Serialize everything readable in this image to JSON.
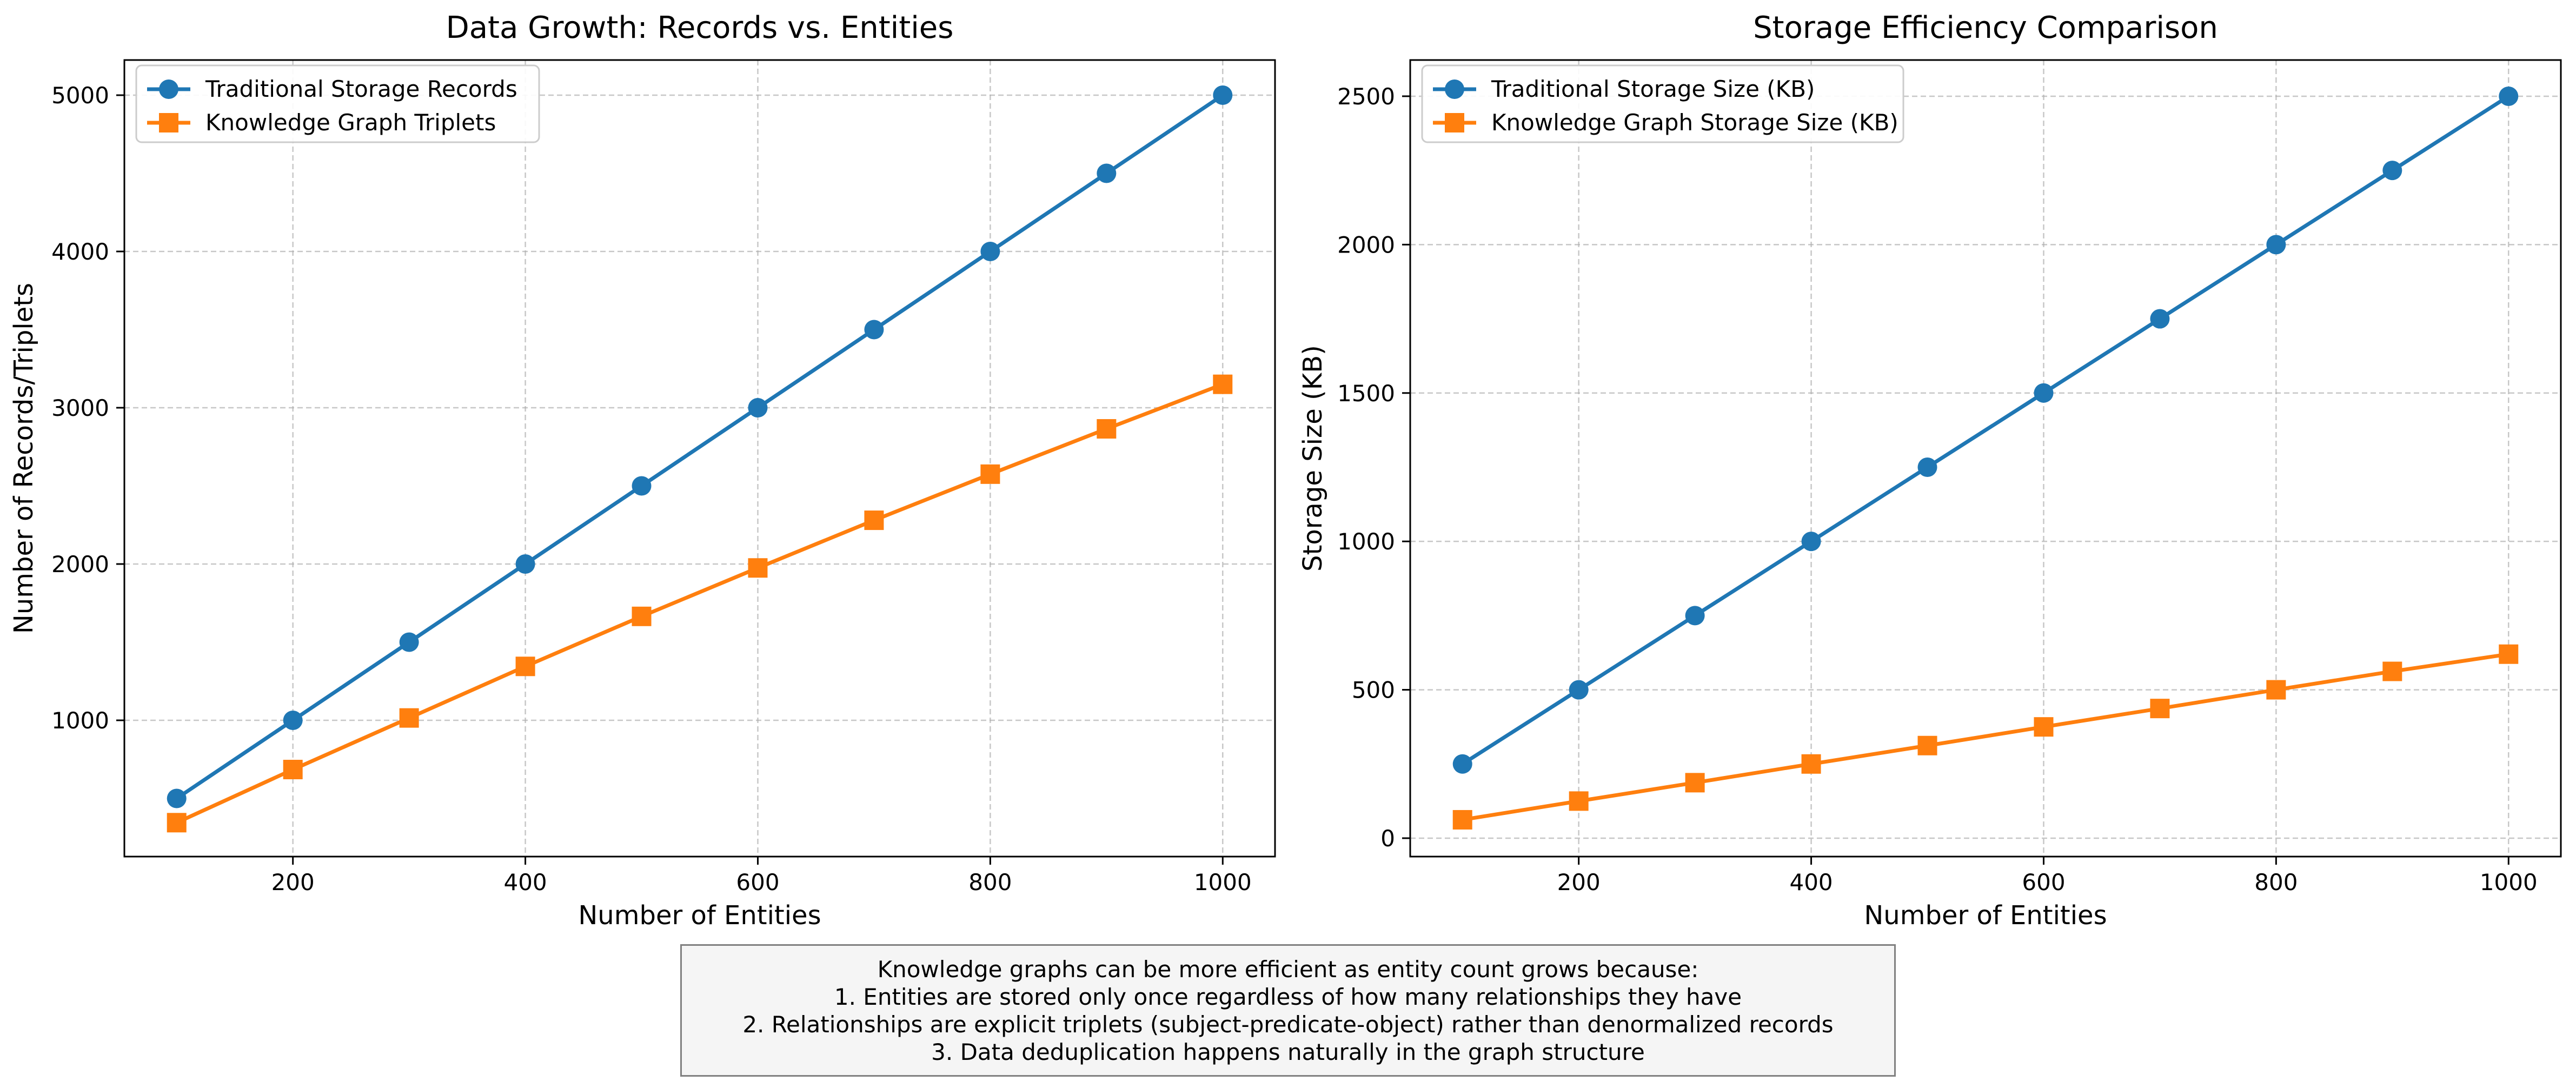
{
  "colors": {
    "series1": "#1f77b4",
    "series2": "#ff7f0e",
    "grid": "#b0b0b0",
    "axis": "#000000"
  },
  "chart_data": [
    {
      "type": "line",
      "title": "Data Growth: Records vs. Entities",
      "xlabel": "Number of Entities",
      "ylabel": "Number of Records/Triplets",
      "x": [
        100,
        200,
        300,
        400,
        500,
        600,
        700,
        800,
        900,
        1000
      ],
      "series": [
        {
          "name": "Traditional Storage Records",
          "marker": "circle",
          "values": [
            500,
            1000,
            1500,
            2000,
            2500,
            3000,
            3500,
            4000,
            4500,
            5000
          ]
        },
        {
          "name": "Knowledge Graph Triplets",
          "marker": "square",
          "values": [
            345,
            685,
            1015,
            1345,
            1665,
            1975,
            2280,
            2575,
            2865,
            3150
          ]
        }
      ],
      "xlim": [
        55,
        1045
      ],
      "ylim": [
        128,
        5225
      ],
      "xticks": [
        200,
        400,
        600,
        800,
        1000
      ],
      "yticks": [
        1000,
        2000,
        3000,
        4000,
        5000
      ],
      "grid": true,
      "legend": "top-left"
    },
    {
      "type": "line",
      "title": "Storage Efficiency Comparison",
      "xlabel": "Number of Entities",
      "ylabel": "Storage Size (KB)",
      "x": [
        100,
        200,
        300,
        400,
        500,
        600,
        700,
        800,
        900,
        1000
      ],
      "series": [
        {
          "name": "Traditional Storage Size (KB)",
          "marker": "circle",
          "values": [
            250,
            500,
            750,
            1000,
            1250,
            1500,
            1750,
            2000,
            2250,
            2500
          ]
        },
        {
          "name": "Knowledge Graph Storage Size (KB)",
          "marker": "square",
          "values": [
            62,
            125,
            187,
            250,
            312,
            375,
            437,
            500,
            562,
            620
          ]
        }
      ],
      "xlim": [
        55,
        1045
      ],
      "ylim": [
        -62,
        2622
      ],
      "xticks": [
        200,
        400,
        600,
        800,
        1000
      ],
      "yticks": [
        0,
        500,
        1000,
        1500,
        2000,
        2500
      ],
      "grid": true,
      "legend": "top-left"
    }
  ],
  "note": {
    "lines": [
      "Knowledge graphs can be more efficient as entity count grows because:",
      "1. Entities are stored only once regardless of how many relationships they have",
      "2. Relationships are explicit triplets (subject-predicate-object) rather than denormalized records",
      "3. Data deduplication happens naturally in the graph structure"
    ]
  }
}
